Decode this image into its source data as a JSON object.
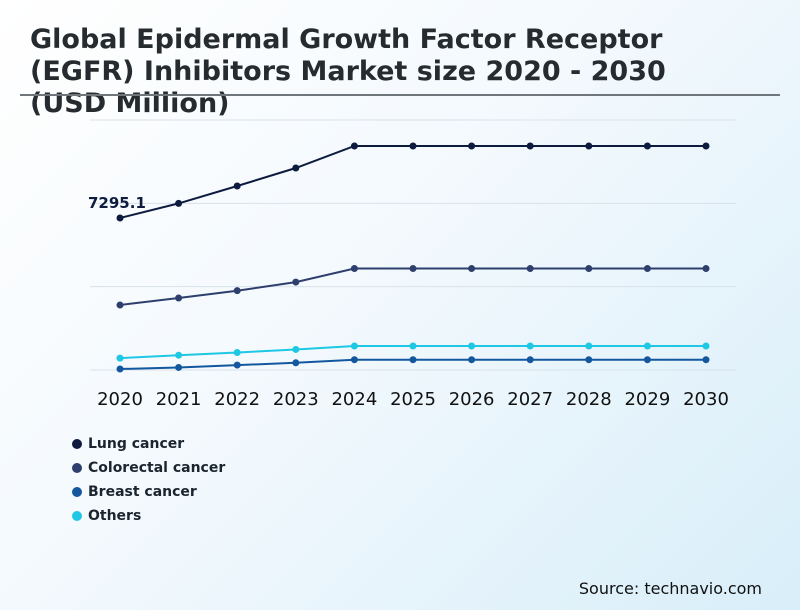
{
  "chart_data": {
    "type": "line",
    "title": "Global Epidermal Growth Factor Receptor (EGFR) Inhibitors Market size 2020 - 2030 (USD Million)",
    "x": [
      "2020",
      "2021",
      "2022",
      "2023",
      "2024",
      "2025",
      "2026",
      "2027",
      "2028",
      "2029",
      "2030"
    ],
    "xlabel": "",
    "ylabel": "",
    "ylim": [
      0,
      12000
    ],
    "grid": true,
    "legend_position": "bottom-left",
    "series": [
      {
        "name": "Lung cancer",
        "color": "#0d1b3e",
        "values": [
          7295.1,
          7997.1,
          8831.9,
          9696.4,
          10753.0,
          10753.0,
          10753.0,
          10753.0,
          10753.0,
          10753.0,
          10753.0
        ]
      },
      {
        "name": "Colorectal cancer",
        "color": "#2e3f6e",
        "values": [
          3117.9,
          3457.3,
          3807.1,
          4220.3,
          4870.0,
          4870.0,
          4870.0,
          4870.0,
          4870.0,
          4870.0,
          4870.0
        ]
      },
      {
        "name": "Breast cancer",
        "color": "#13589e",
        "values": [
          48,
          122,
          237,
          346,
          494,
          494,
          494,
          494,
          494,
          494,
          494
        ]
      },
      {
        "name": "Others",
        "color": "#1ec8e4",
        "values": [
          570,
          711,
          841,
          986,
          1151,
          1151,
          1151,
          1151,
          1151,
          1151,
          1151
        ]
      }
    ],
    "annotations": [
      {
        "series": "Lung cancer",
        "x": "2020",
        "text": "7295.1"
      }
    ]
  },
  "source": "Source: technavio.com"
}
